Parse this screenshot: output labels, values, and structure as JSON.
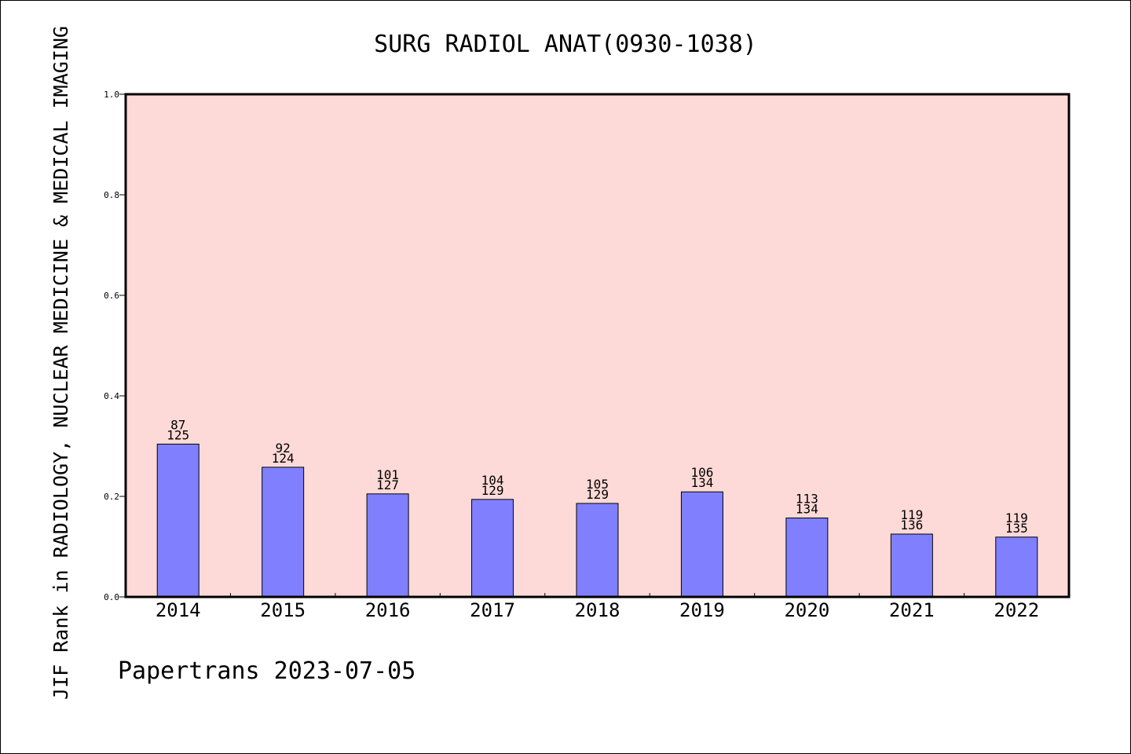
{
  "chart_data": {
    "type": "bar",
    "title": "SURG RADIOL ANAT(0930-1038)",
    "xlabel": "",
    "ylabel": "JIF Rank in RADIOLOGY, NUCLEAR MEDICINE & MEDICAL IMAGING",
    "ylim": [
      0,
      1.0
    ],
    "yticks": [
      "0.0",
      "0.2",
      "0.4",
      "0.6",
      "0.8",
      "1.0"
    ],
    "categories": [
      "2014",
      "2015",
      "2016",
      "2017",
      "2018",
      "2019",
      "2020",
      "2021",
      "2022"
    ],
    "values": [
      0.304,
      0.258,
      0.205,
      0.194,
      0.186,
      0.209,
      0.157,
      0.125,
      0.119
    ],
    "ranks": [
      "87",
      "92",
      "101",
      "104",
      "105",
      "106",
      "113",
      "119",
      "119"
    ],
    "totals": [
      "125",
      "124",
      "127",
      "129",
      "129",
      "134",
      "134",
      "136",
      "135"
    ],
    "grid": false,
    "colors": {
      "plot_bg": "#fddad7",
      "bar_fill": "#8080ff",
      "bar_stroke": "#000000"
    }
  },
  "footer": {
    "credit": "Papertrans 2023-07-05"
  }
}
